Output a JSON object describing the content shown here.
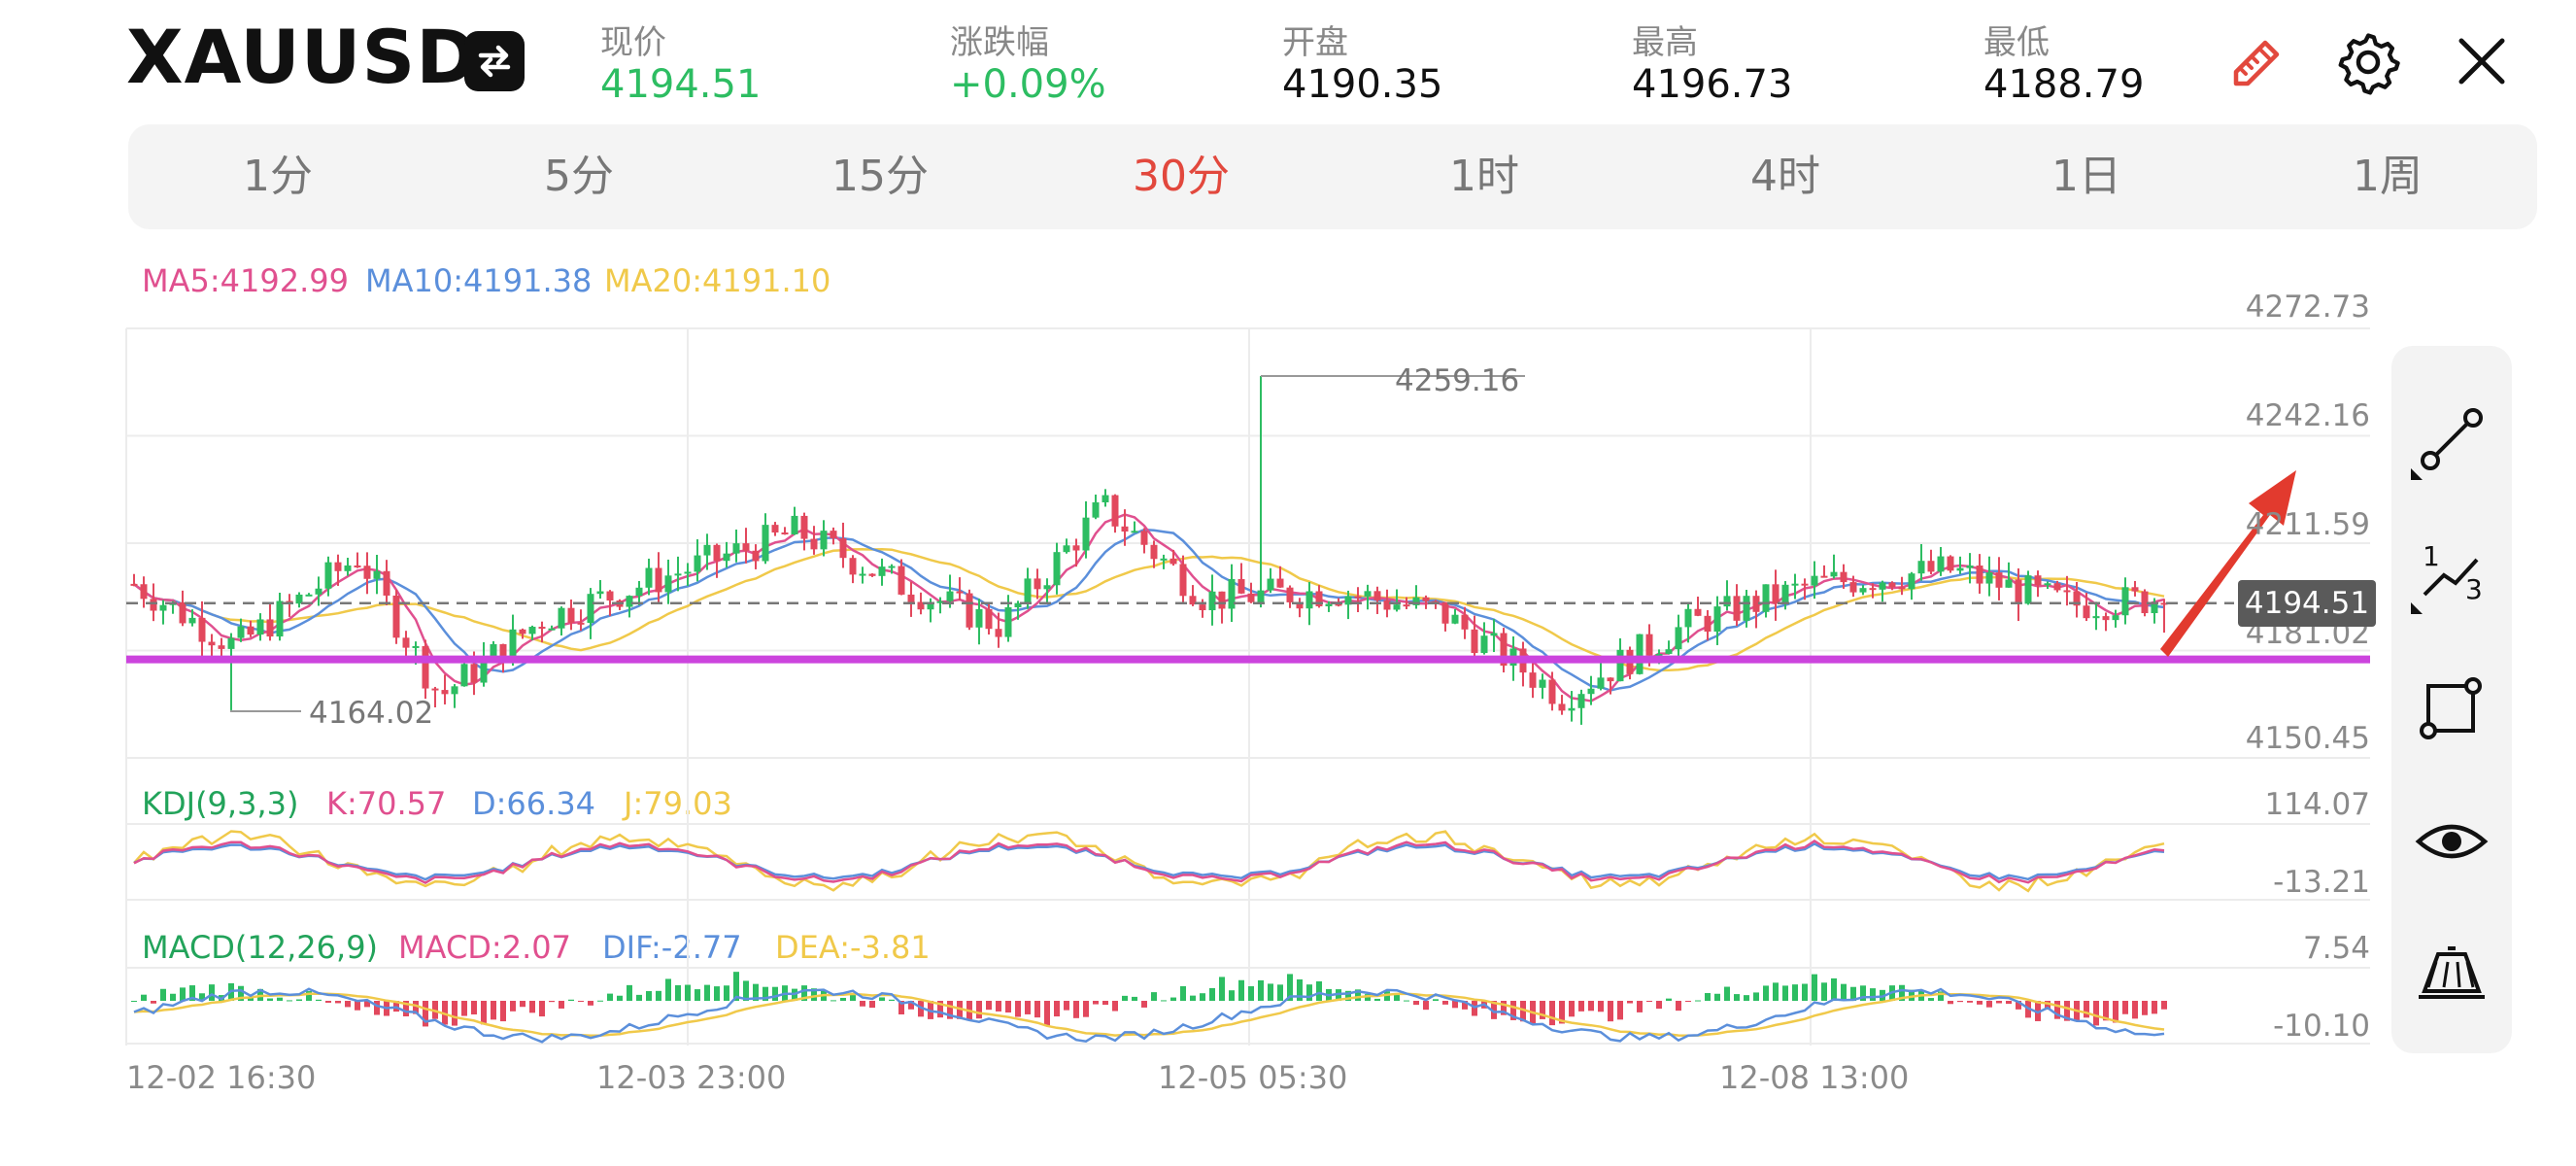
{
  "header": {
    "symbol": "XAUUSD",
    "stats": [
      {
        "label": "现价",
        "value": "4194.51",
        "color": "#2dbd62"
      },
      {
        "label": "涨跌幅",
        "value": "+0.09%",
        "color": "#2dbd62"
      },
      {
        "label": "开盘",
        "value": "4190.35",
        "color": "#111111"
      },
      {
        "label": "最高",
        "value": "4196.73",
        "color": "#111111"
      },
      {
        "label": "最低",
        "value": "4188.79",
        "color": "#111111"
      }
    ],
    "icons": [
      "swap-icon",
      "pencil-icon",
      "gear-icon",
      "close-icon"
    ]
  },
  "periods": {
    "tabs": [
      "1分",
      "5分",
      "15分",
      "30分",
      "1时",
      "4时",
      "1日",
      "1周"
    ],
    "active": "30分",
    "active_color": "#e2483d"
  },
  "main_legend": {
    "ma5": "MA5:4192.99",
    "ma10": "MA10:4191.38",
    "ma20": "MA20:4191.10"
  },
  "price_axis": [
    "4272.73",
    "4242.16",
    "4211.59",
    "4181.02",
    "4150.45"
  ],
  "annotations": {
    "high_label": "4259.16",
    "low_label": "4164.02",
    "current_price": "4194.51"
  },
  "kdj": {
    "title": "KDJ(9,3,3)",
    "k": "K:70.57",
    "d": "D:66.34",
    "j": "J:79.03",
    "axis_top": "114.07",
    "axis_bottom": "-13.21"
  },
  "macd": {
    "title": "MACD(12,26,9)",
    "macd": "MACD:2.07",
    "dif": "DIF:-2.77",
    "dea": "DEA:-3.81",
    "axis_top": "7.54",
    "axis_bottom": "-10.10"
  },
  "time_axis": [
    "12-02 16:30",
    "12-03 23:00",
    "12-05 05:30",
    "12-08 13:00"
  ],
  "toolbar": [
    "line-segment-icon",
    "fibonacci-icon",
    "rectangle-icon",
    "eye-icon",
    "eraser-icon"
  ],
  "colors": {
    "up": "#2dbd62",
    "down": "#e2485d",
    "ma5": "#e0508f",
    "ma10": "#5b8fdb",
    "ma20": "#f0c94a",
    "support_line": "#cc44dd",
    "arrow": "#e23a2e"
  },
  "chart_data": {
    "type": "candlestick",
    "series": [
      {
        "name": "MA5",
        "last": 4192.99
      },
      {
        "name": "MA10",
        "last": 4191.38
      },
      {
        "name": "MA20",
        "last": 4191.1
      }
    ],
    "y_ticks": [
      4272.73,
      4242.16,
      4211.59,
      4181.02,
      4150.45
    ],
    "x_ticks": [
      "12-02 16:30",
      "12-03 23:00",
      "12-05 05:30",
      "12-08 13:00"
    ],
    "high": 4259.16,
    "low": 4164.02,
    "current": 4194.51,
    "support_level": 4178.5
  }
}
